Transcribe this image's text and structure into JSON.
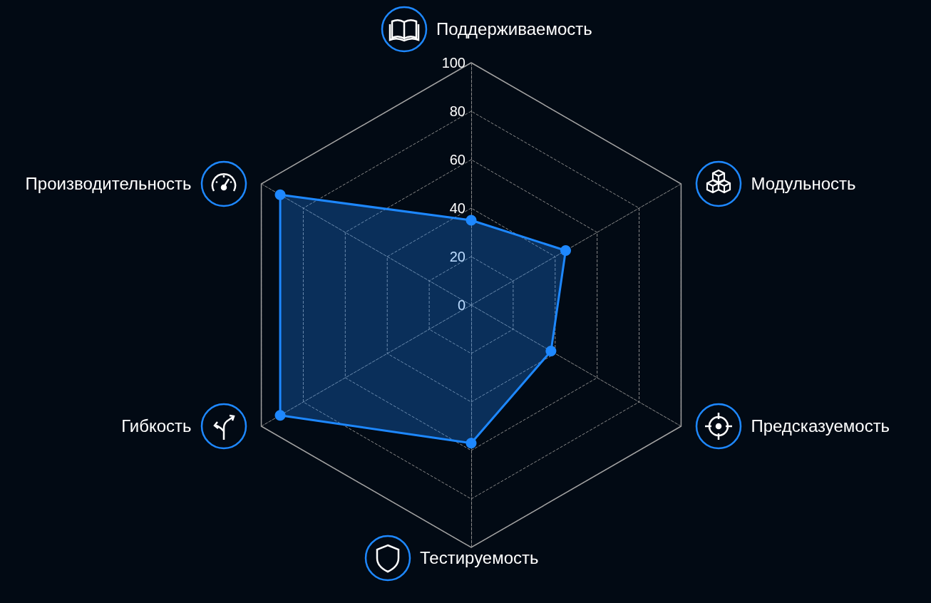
{
  "chart_data": {
    "type": "radar",
    "categories": [
      "Поддерживаемость",
      "Модульность",
      "Предсказуемость",
      "Тестируемость",
      "Гибкость",
      "Производительность"
    ],
    "series": [
      {
        "color": "#1e88ff",
        "values": [
          35,
          45,
          38,
          57,
          91,
          91
        ]
      }
    ],
    "ylim": [
      0,
      100
    ],
    "yticks": [
      0,
      20,
      40,
      60,
      80,
      100
    ],
    "marker": "circle",
    "line_style": "solid",
    "legend": false
  }
}
